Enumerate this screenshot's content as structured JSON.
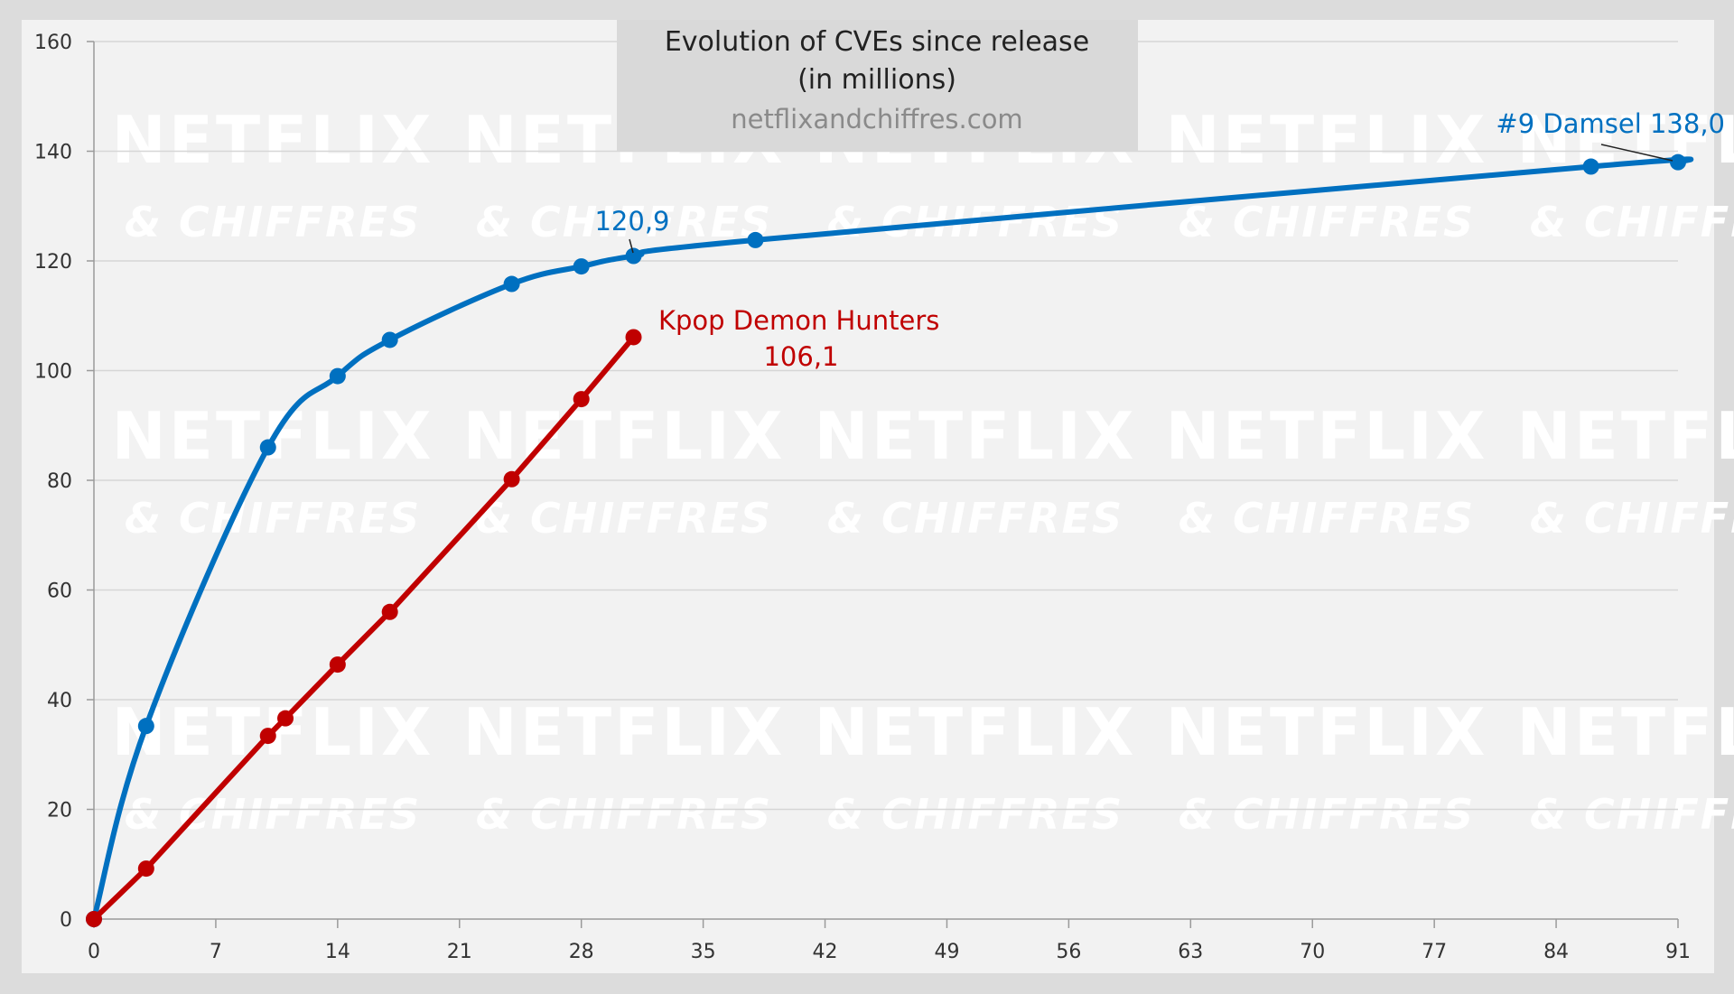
{
  "chart_data": {
    "type": "line",
    "title": "Evolution of CVEs since release",
    "subtitle": "(in millions)",
    "source": "netflixandchiffres.com",
    "xlabel": "",
    "ylabel": "",
    "xlim": [
      0,
      91
    ],
    "ylim": [
      0,
      160
    ],
    "x_ticks": [
      0,
      7,
      14,
      21,
      28,
      35,
      42,
      49,
      56,
      63,
      70,
      77,
      84,
      91
    ],
    "y_ticks": [
      0,
      20,
      40,
      60,
      80,
      100,
      120,
      140,
      160
    ],
    "grid": "horizontal",
    "watermark": {
      "line1": "NETFLIX",
      "line2": "& CHIFFRES"
    },
    "series": [
      {
        "color": "#0070c0",
        "smooth": true,
        "points": [
          {
            "x": 0,
            "y": 0
          },
          {
            "x": 3,
            "y": 35.2
          },
          {
            "x": 10,
            "y": 86.0
          },
          {
            "x": 14,
            "y": 99.0
          },
          {
            "x": 17,
            "y": 105.6
          },
          {
            "x": 24,
            "y": 115.8
          },
          {
            "x": 28,
            "y": 119.0
          },
          {
            "x": 31,
            "y": 120.9
          },
          {
            "x": 38,
            "y": 123.8
          },
          {
            "x": 86,
            "y": 137.2
          },
          {
            "x": 91,
            "y": 138.0
          }
        ]
      },
      {
        "color": "#c00000",
        "smooth": false,
        "points": [
          {
            "x": 0,
            "y": 0
          },
          {
            "x": 3,
            "y": 9.2
          },
          {
            "x": 10,
            "y": 33.4
          },
          {
            "x": 11,
            "y": 36.6
          },
          {
            "x": 14,
            "y": 46.4
          },
          {
            "x": 17,
            "y": 56.0
          },
          {
            "x": 24,
            "y": 80.2
          },
          {
            "x": 28,
            "y": 94.8
          },
          {
            "x": 31,
            "y": 106.1
          }
        ]
      }
    ],
    "annotations": [
      {
        "text": "120,9",
        "color": "#0070c0",
        "x": 31,
        "y": 120.9
      },
      {
        "text": "#9 Damsel 138,0",
        "color": "#0070c0",
        "x": 91,
        "y": 138.0
      },
      {
        "text": "Kpop Demon Hunters",
        "color": "#c00000",
        "x": 31,
        "y": 106.1
      },
      {
        "text": "106,1",
        "color": "#c00000",
        "x": 31,
        "y": 106.1
      }
    ]
  }
}
